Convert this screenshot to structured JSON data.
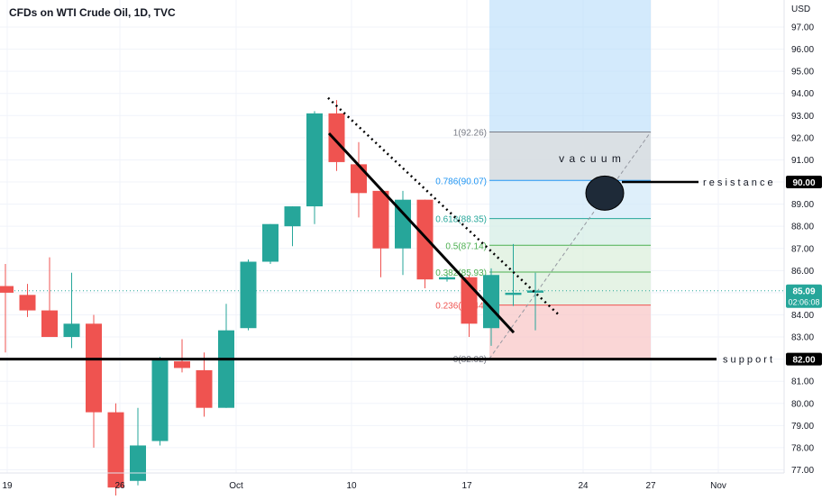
{
  "chart_data": {
    "type": "candlestick",
    "title": "CFDs on WTI Crude Oil, 1D, TVC",
    "currency": "USD",
    "colors": {
      "up": "#26a69a",
      "down": "#ef5350",
      "background": "#ffffff",
      "grid": "#f0f3fa",
      "last_price": "#26a69a",
      "fib_236": "#ef5350",
      "fib_382": "#4caf50",
      "fib_5": "#4caf50",
      "fib_618": "#26a69a",
      "fib_786": "#2196f3",
      "fib_1": "#787b86"
    },
    "y_axis": {
      "ticks": [
        "97.00",
        "96.00",
        "95.00",
        "94.00",
        "93.00",
        "92.00",
        "91.00",
        "90.00",
        "89.00",
        "88.00",
        "87.00",
        "86.00",
        "85.00",
        "84.00",
        "83.00",
        "82.00",
        "81.00",
        "80.00",
        "79.00",
        "78.00",
        "77.00"
      ],
      "range": [
        76.8,
        97.8
      ]
    },
    "x_axis": {
      "ticks": [
        "19",
        "26",
        "Oct",
        "10",
        "17",
        "24",
        "27",
        "Nov"
      ]
    },
    "candles": [
      {
        "o": 85.3,
        "h": 86.3,
        "l": 82.3,
        "c": 85.0
      },
      {
        "o": 84.9,
        "h": 85.4,
        "l": 83.9,
        "c": 84.2
      },
      {
        "o": 84.2,
        "h": 86.6,
        "l": 83.1,
        "c": 83.0
      },
      {
        "o": 83.0,
        "h": 85.9,
        "l": 82.5,
        "c": 83.6
      },
      {
        "o": 83.6,
        "h": 84.0,
        "l": 78.0,
        "c": 79.6
      },
      {
        "o": 79.6,
        "h": 80.0,
        "l": 75.5,
        "c": 76.2
      },
      {
        "o": 76.5,
        "h": 79.8,
        "l": 76.3,
        "c": 78.1
      },
      {
        "o": 78.3,
        "h": 82.1,
        "l": 78.1,
        "c": 82.0
      },
      {
        "o": 81.9,
        "h": 82.9,
        "l": 81.4,
        "c": 81.6
      },
      {
        "o": 81.5,
        "h": 82.3,
        "l": 79.4,
        "c": 79.8
      },
      {
        "o": 79.8,
        "h": 84.5,
        "l": 79.8,
        "c": 83.3
      },
      {
        "o": 83.4,
        "h": 86.5,
        "l": 83.3,
        "c": 86.4
      },
      {
        "o": 86.4,
        "h": 88.1,
        "l": 86.3,
        "c": 88.1
      },
      {
        "o": 88.0,
        "h": 88.9,
        "l": 87.1,
        "c": 88.9
      },
      {
        "o": 88.9,
        "h": 93.2,
        "l": 88.1,
        "c": 93.1
      },
      {
        "o": 93.1,
        "h": 93.7,
        "l": 90.5,
        "c": 90.9
      },
      {
        "o": 90.8,
        "h": 91.8,
        "l": 88.4,
        "c": 89.5
      },
      {
        "o": 89.6,
        "h": 89.6,
        "l": 85.7,
        "c": 87.0
      },
      {
        "o": 87.0,
        "h": 89.6,
        "l": 85.8,
        "c": 89.2
      },
      {
        "o": 89.2,
        "h": 89.2,
        "l": 85.2,
        "c": 85.6
      },
      {
        "o": 85.6,
        "h": 85.8,
        "l": 85.5,
        "c": 85.7
      },
      {
        "o": 85.7,
        "h": 85.8,
        "l": 83.0,
        "c": 83.6
      },
      {
        "o": 83.4,
        "h": 86.1,
        "l": 82.6,
        "c": 85.8
      },
      {
        "o": 84.9,
        "h": 87.2,
        "l": 84.4,
        "c": 85.0
      },
      {
        "o": 85.0,
        "h": 85.9,
        "l": 83.3,
        "c": 85.1
      }
    ],
    "fib_levels": [
      {
        "ratio": "0",
        "price": 82.02,
        "label": "0(82.02)"
      },
      {
        "ratio": "0.236",
        "price": 84.44,
        "label": "0.236(84.44)"
      },
      {
        "ratio": "0.382",
        "price": 85.93,
        "label": "0.382(85.93)"
      },
      {
        "ratio": "0.5",
        "price": 87.14,
        "label": "0.5(87.14)"
      },
      {
        "ratio": "0.618",
        "price": 88.35,
        "label": "0.618(88.35)"
      },
      {
        "ratio": "0.786",
        "price": 90.07,
        "label": "0.786(90.07)"
      },
      {
        "ratio": "1",
        "price": 92.26,
        "label": "1(92.26)"
      }
    ],
    "annotations": {
      "vacuum": "v a c u u m",
      "resistance": "r e s i s t a n c e",
      "support": "s u p p o r t"
    },
    "price_labels": {
      "resistance": "90.00",
      "support": "82.00",
      "last": "85.09",
      "countdown": "02:06:08"
    },
    "levels": {
      "resistance": 90.0,
      "support": 82.0,
      "last": 85.09
    }
  }
}
